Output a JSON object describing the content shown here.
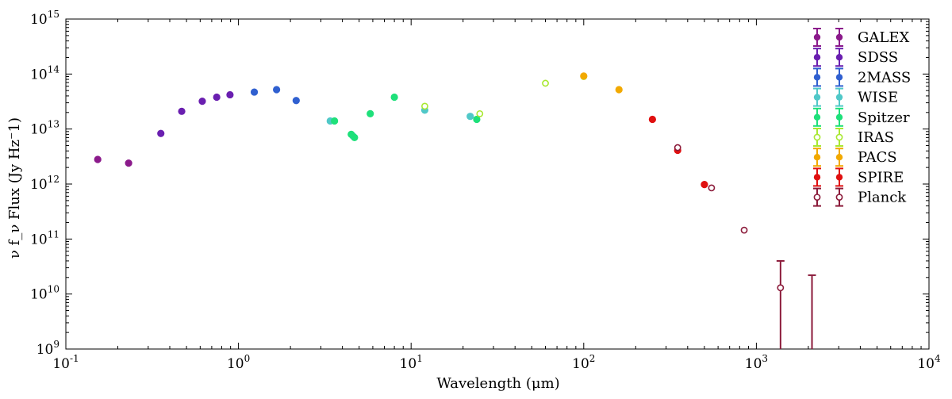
{
  "chart_data": {
    "type": "scatter",
    "xlabel": "Wavelength (μm)",
    "ylabel": "ν f_ν Flux (Jy Hz⁻1)",
    "xscale": "log",
    "yscale": "log",
    "xlim": [
      0.1,
      10000
    ],
    "ylim": [
      1000000000.0,
      1000000000000000.0
    ],
    "x_ticks": [
      {
        "value": 0.1,
        "base": "10",
        "exp": "-1"
      },
      {
        "value": 1,
        "base": "10",
        "exp": "0"
      },
      {
        "value": 10,
        "base": "10",
        "exp": "1"
      },
      {
        "value": 100,
        "base": "10",
        "exp": "2"
      },
      {
        "value": 1000,
        "base": "10",
        "exp": "3"
      },
      {
        "value": 10000,
        "base": "10",
        "exp": "4"
      }
    ],
    "y_ticks": [
      {
        "value": 1000000000.0,
        "base": "10",
        "exp": "9"
      },
      {
        "value": 10000000000.0,
        "base": "10",
        "exp": "10"
      },
      {
        "value": 100000000000.0,
        "base": "10",
        "exp": "11"
      },
      {
        "value": 1000000000000.0,
        "base": "10",
        "exp": "12"
      },
      {
        "value": 10000000000000.0,
        "base": "10",
        "exp": "13"
      },
      {
        "value": 100000000000000.0,
        "base": "10",
        "exp": "14"
      },
      {
        "value": 1000000000000000.0,
        "base": "10",
        "exp": "15"
      }
    ],
    "grid": false,
    "legend_position": "top-right",
    "series": [
      {
        "name": "GALEX",
        "color": "#8b1a8b",
        "marker": "filled",
        "points": [
          {
            "x": 0.153,
            "y": 2800000000000.0
          },
          {
            "x": 0.231,
            "y": 2400000000000.0
          }
        ]
      },
      {
        "name": "SDSS",
        "color": "#6a1fb0",
        "marker": "filled",
        "points": [
          {
            "x": 0.355,
            "y": 8300000000000.0
          },
          {
            "x": 0.469,
            "y": 21000000000000.0
          },
          {
            "x": 0.617,
            "y": 32000000000000.0
          },
          {
            "x": 0.748,
            "y": 38000000000000.0
          },
          {
            "x": 0.893,
            "y": 42000000000000.0
          }
        ]
      },
      {
        "name": "2MASS",
        "color": "#3060d0",
        "marker": "filled",
        "points": [
          {
            "x": 1.235,
            "y": 47000000000000.0
          },
          {
            "x": 1.662,
            "y": 52000000000000.0
          },
          {
            "x": 2.159,
            "y": 33000000000000.0
          }
        ]
      },
      {
        "name": "WISE",
        "color": "#50c8c8",
        "marker": "filled",
        "points": [
          {
            "x": 3.4,
            "y": 14000000000000.0
          },
          {
            "x": 4.6,
            "y": 7500000000000.0
          },
          {
            "x": 12,
            "y": 22000000000000.0
          },
          {
            "x": 22,
            "y": 17000000000000.0
          }
        ]
      },
      {
        "name": "Spitzer",
        "color": "#1ee07a",
        "marker": "filled",
        "points": [
          {
            "x": 3.6,
            "y": 14000000000000.0
          },
          {
            "x": 4.5,
            "y": 8000000000000.0
          },
          {
            "x": 4.7,
            "y": 7000000000000.0
          },
          {
            "x": 5.8,
            "y": 19000000000000.0
          },
          {
            "x": 8.0,
            "y": 38000000000000.0
          },
          {
            "x": 24,
            "y": 15000000000000.0
          }
        ]
      },
      {
        "name": "IRAS",
        "color": "#a8e830",
        "marker": "open",
        "points": [
          {
            "x": 12,
            "y": 26000000000000.0
          },
          {
            "x": 25,
            "y": 19000000000000.0
          },
          {
            "x": 60,
            "y": 68000000000000.0
          },
          {
            "x": 100,
            "y": 90000000000000.0
          }
        ]
      },
      {
        "name": "PACS",
        "color": "#f2a900",
        "marker": "filled",
        "points": [
          {
            "x": 100,
            "y": 92000000000000.0
          },
          {
            "x": 160,
            "y": 52000000000000.0
          }
        ]
      },
      {
        "name": "SPIRE",
        "color": "#e01010",
        "marker": "filled",
        "points": [
          {
            "x": 250,
            "y": 15000000000000.0
          },
          {
            "x": 350,
            "y": 4100000000000.0
          },
          {
            "x": 500,
            "y": 980000000000.0
          }
        ]
      },
      {
        "name": "Planck",
        "color": "#8b1a3a",
        "marker": "open",
        "points": [
          {
            "x": 350,
            "y": 4600000000000.0
          },
          {
            "x": 550,
            "y": 850000000000.0
          },
          {
            "x": 850,
            "y": 145000000000.0
          },
          {
            "x": 1380,
            "y": 13000000000.0,
            "err_lo": 1000000000.0,
            "err_hi": 40000000000.0
          },
          {
            "x": 2100,
            "y": 1050000000.0,
            "err_lo": 1000000000.0,
            "err_hi": 22000000000.0
          }
        ]
      }
    ]
  }
}
